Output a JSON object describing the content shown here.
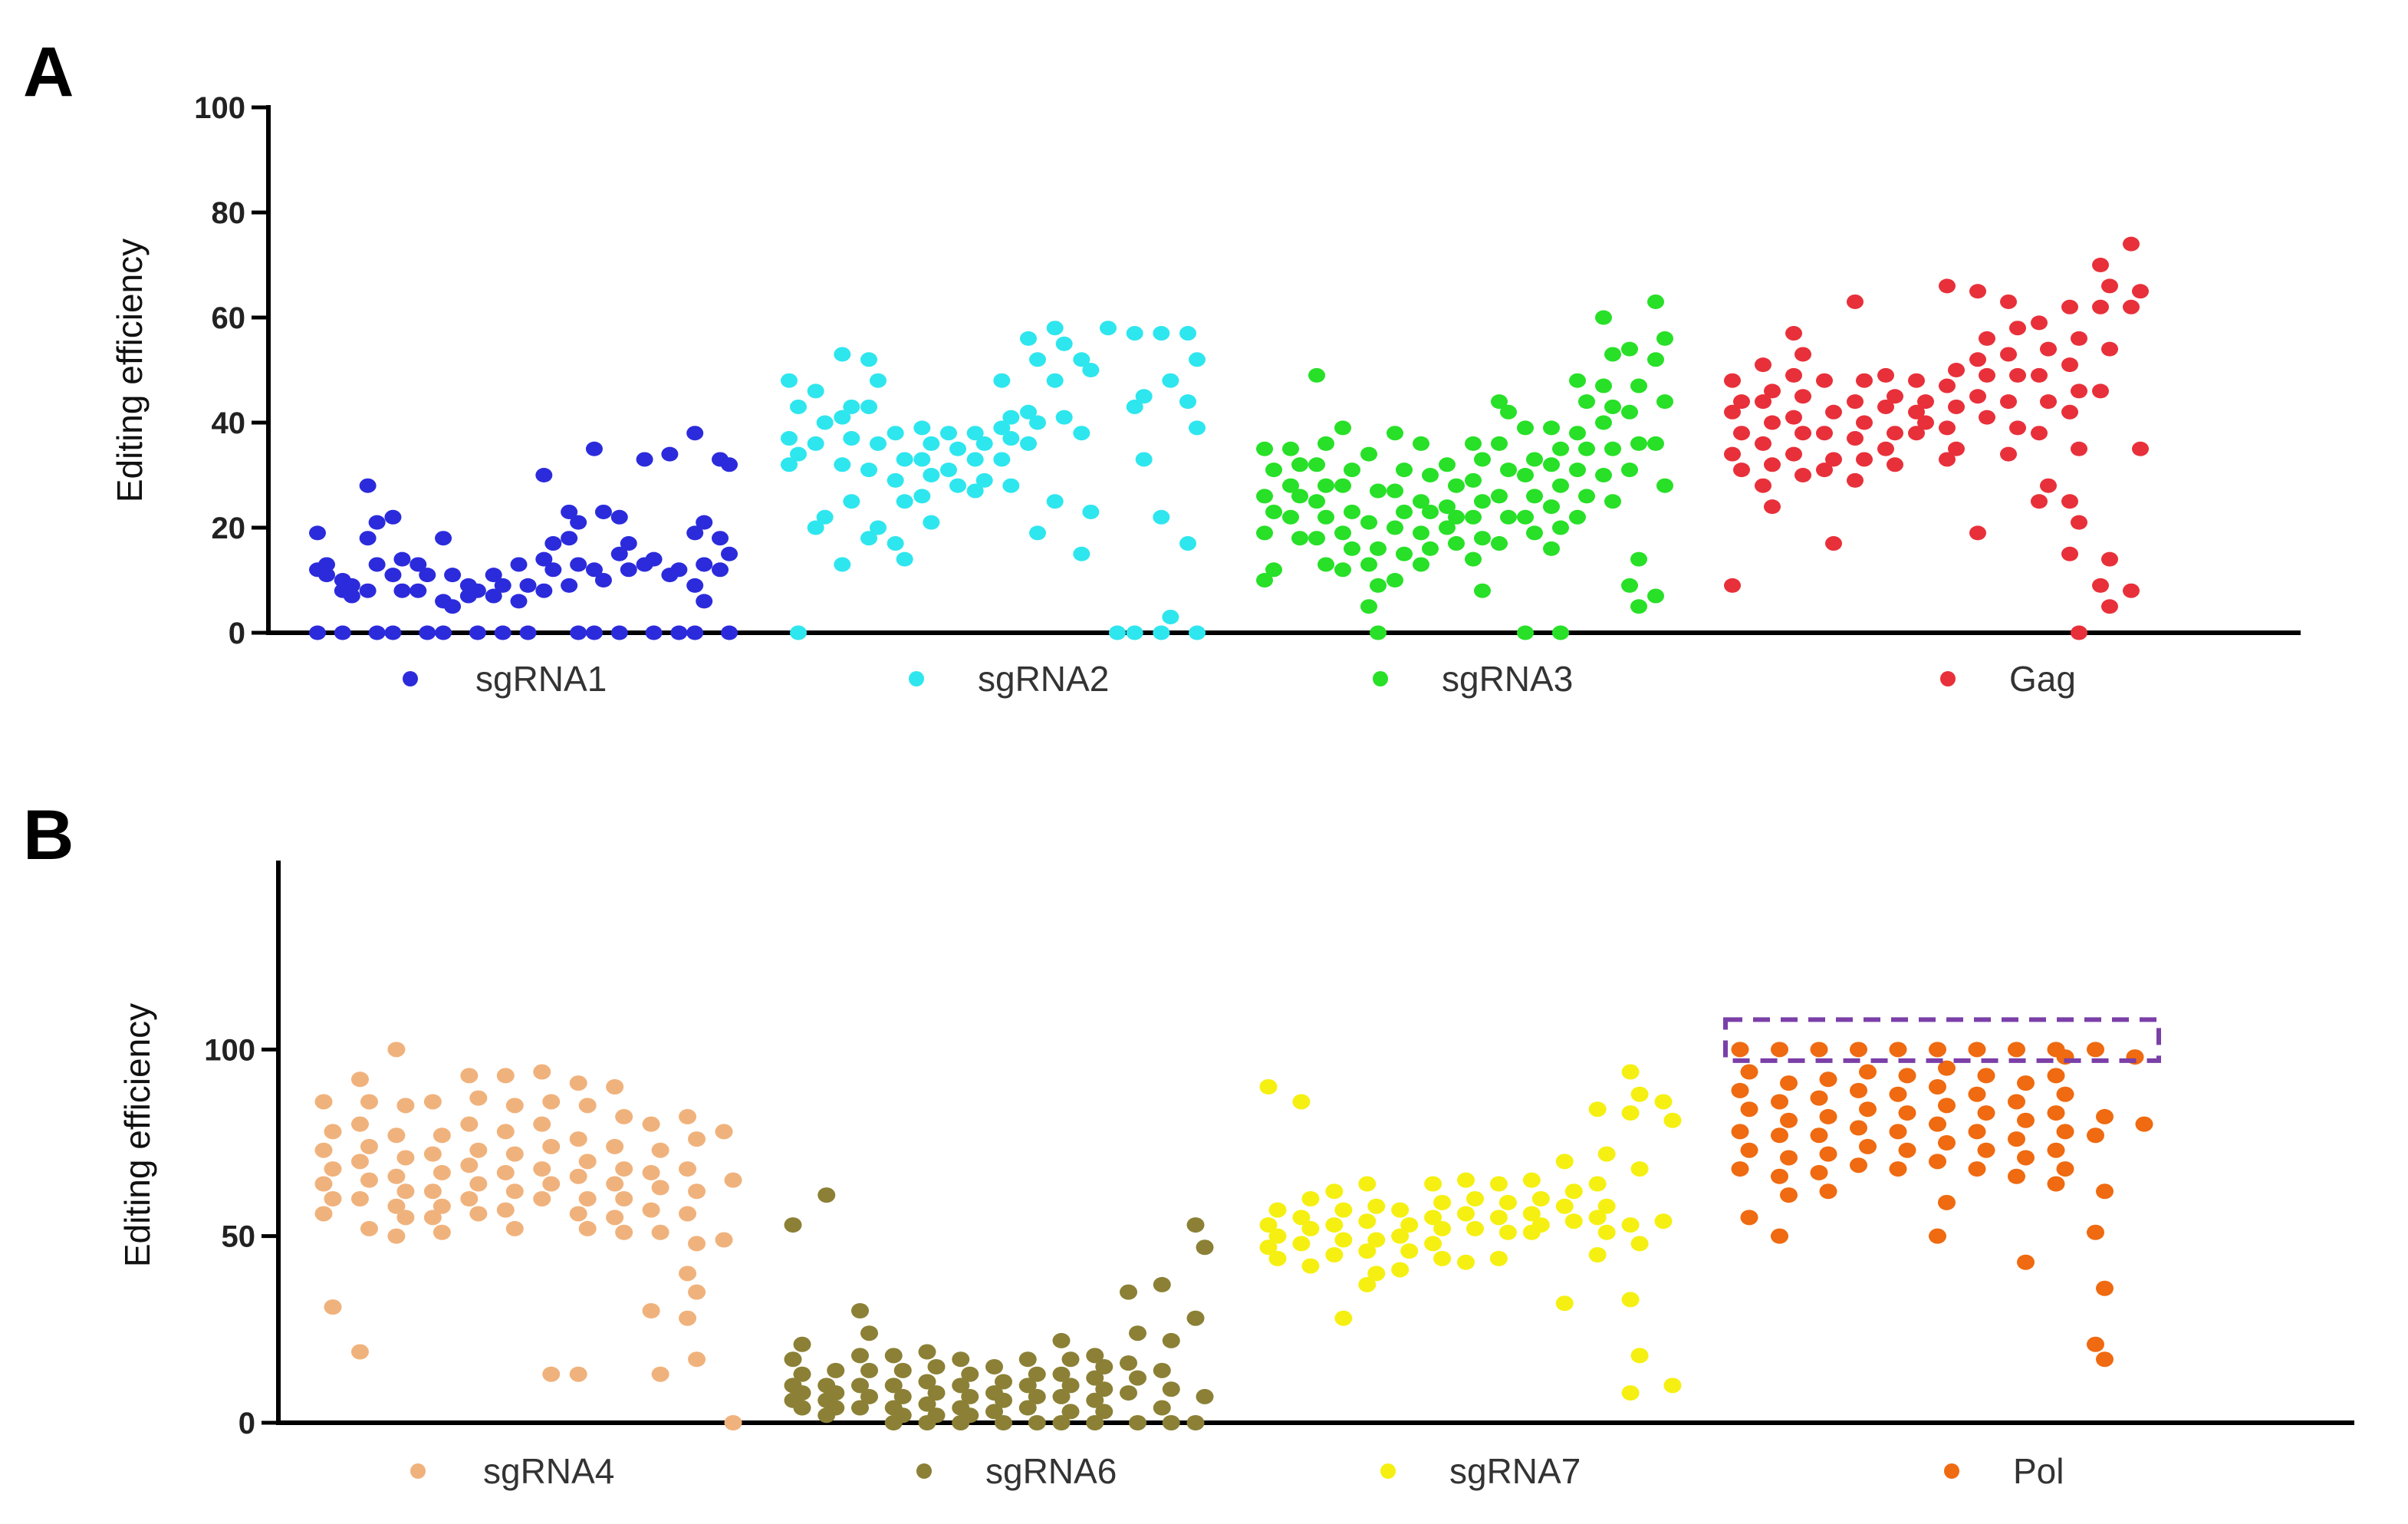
{
  "chart_data": [
    {
      "type": "scatter",
      "panel_label": "A",
      "ylabel": "Editing efficiency",
      "ylim": [
        0,
        100
      ],
      "yticks": [
        0,
        20,
        40,
        60,
        80,
        100
      ],
      "legend_position": "bottom",
      "series": [
        {
          "name": "sgRNA1",
          "color": "#2b2bdc",
          "samples": [
            [
              19,
              13,
              12,
              11,
              0
            ],
            [
              10,
              9,
              8,
              7,
              0
            ],
            [
              28,
              21,
              18,
              13,
              8,
              0
            ],
            [
              22,
              14,
              11,
              8,
              0
            ],
            [
              13,
              11,
              8,
              0
            ],
            [
              18,
              11,
              6,
              5,
              0
            ],
            [
              9,
              8,
              7,
              0
            ],
            [
              11,
              9,
              7,
              0
            ],
            [
              13,
              9,
              6,
              0
            ],
            [
              30,
              17,
              14,
              12,
              8
            ],
            [
              23,
              21,
              18,
              13,
              9,
              0
            ],
            [
              35,
              23,
              12,
              10,
              0
            ],
            [
              22,
              17,
              15,
              12,
              0
            ],
            [
              33,
              14,
              13,
              0
            ],
            [
              34,
              12,
              11,
              0
            ],
            [
              38,
              21,
              19,
              13,
              9,
              6,
              0
            ],
            [
              33,
              32,
              18,
              15,
              12,
              0
            ]
          ]
        },
        {
          "name": "sgRNA2",
          "color": "#2ee6ee",
          "samples": [
            [
              48,
              43,
              37,
              34,
              32,
              0
            ],
            [
              46,
              40,
              36,
              22,
              20
            ],
            [
              53,
              43,
              41,
              37,
              32,
              25,
              13
            ],
            [
              52,
              48,
              43,
              36,
              31,
              20,
              18
            ],
            [
              38,
              33,
              29,
              25,
              17,
              14
            ],
            [
              39,
              36,
              33,
              30,
              26,
              21
            ],
            [
              38,
              35,
              31,
              28
            ],
            [
              38,
              36,
              33,
              29,
              27
            ],
            [
              48,
              41,
              39,
              37,
              33,
              28
            ],
            [
              56,
              52,
              42,
              40,
              36,
              19
            ],
            [
              58,
              55,
              48,
              41,
              25
            ],
            [
              52,
              50,
              38,
              23,
              15
            ],
            [
              58,
              0
            ],
            [
              57,
              45,
              43,
              33,
              0
            ],
            [
              57,
              48,
              22,
              3,
              0
            ],
            [
              57,
              52,
              44,
              39,
              17,
              0
            ]
          ]
        },
        {
          "name": "sgRNA3",
          "color": "#27e027",
          "samples": [
            [
              35,
              31,
              26,
              23,
              19,
              12,
              10
            ],
            [
              35,
              32,
              28,
              26,
              22,
              18
            ],
            [
              49,
              36,
              32,
              28,
              25,
              22,
              18,
              13
            ],
            [
              39,
              31,
              28,
              23,
              19,
              16,
              12
            ],
            [
              34,
              27,
              21,
              16,
              13,
              9,
              5,
              0
            ],
            [
              38,
              31,
              27,
              23,
              20,
              15,
              10
            ],
            [
              36,
              30,
              25,
              23,
              19,
              16,
              13
            ],
            [
              32,
              28,
              24,
              22,
              20,
              17
            ],
            [
              36,
              33,
              29,
              25,
              22,
              18,
              14,
              8
            ],
            [
              44,
              42,
              36,
              31,
              26,
              22,
              17
            ],
            [
              39,
              33,
              30,
              26,
              22,
              19,
              0
            ],
            [
              39,
              35,
              32,
              28,
              24,
              20,
              16,
              0
            ],
            [
              48,
              44,
              38,
              35,
              31,
              26,
              22
            ],
            [
              60,
              53,
              47,
              43,
              40,
              35,
              30,
              25
            ],
            [
              54,
              47,
              42,
              36,
              31,
              14,
              9,
              5
            ],
            [
              63,
              56,
              52,
              44,
              36,
              28,
              7
            ]
          ]
        },
        {
          "name": "Gag",
          "color": "#e8303a",
          "samples": [
            [
              48,
              44,
              42,
              38,
              34,
              31,
              9
            ],
            [
              51,
              46,
              44,
              40,
              36,
              32,
              28,
              24
            ],
            [
              57,
              53,
              49,
              45,
              41,
              38,
              34,
              30
            ],
            [
              48,
              42,
              38,
              33,
              31,
              17
            ],
            [
              63,
              48,
              44,
              40,
              37,
              33,
              29
            ],
            [
              49,
              45,
              43,
              38,
              35,
              32
            ],
            [
              48,
              44,
              42,
              40,
              38
            ],
            [
              66,
              50,
              47,
              43,
              39,
              35,
              33
            ],
            [
              65,
              56,
              52,
              49,
              45,
              41,
              19
            ],
            [
              63,
              58,
              53,
              49,
              44,
              39,
              34
            ],
            [
              59,
              54,
              49,
              44,
              38,
              28,
              25
            ],
            [
              62,
              56,
              51,
              46,
              42,
              35,
              25,
              21,
              15,
              0
            ],
            [
              70,
              66,
              62,
              54,
              46,
              14,
              9,
              5
            ],
            [
              74,
              65,
              62,
              35,
              8
            ]
          ]
        }
      ]
    },
    {
      "type": "scatter",
      "panel_label": "B",
      "ylabel": "Editing efficiency",
      "ylim": [
        0,
        150
      ],
      "yticks": [
        0,
        50,
        100
      ],
      "legend_position": "bottom",
      "highlight_region": {
        "x_from_series": "Pol",
        "y_range": [
          97,
          108
        ],
        "style": "dashed",
        "color": "#7b3fa8"
      },
      "series": [
        {
          "name": "sgRNA4",
          "color": "#f0b27c",
          "samples": [
            [
              86,
              78,
              73,
              68,
              64,
              60,
              56,
              31
            ],
            [
              92,
              86,
              80,
              74,
              70,
              65,
              60,
              52,
              19
            ],
            [
              100,
              85,
              77,
              71,
              66,
              62,
              58,
              55,
              50
            ],
            [
              86,
              77,
              72,
              67,
              62,
              58,
              55,
              51
            ],
            [
              93,
              87,
              80,
              73,
              69,
              64,
              60,
              56
            ],
            [
              93,
              85,
              78,
              72,
              67,
              62,
              57,
              52
            ],
            [
              94,
              86,
              80,
              74,
              68,
              64,
              60,
              13
            ],
            [
              91,
              85,
              76,
              70,
              66,
              60,
              56,
              52,
              13
            ],
            [
              90,
              82,
              74,
              68,
              64,
              60,
              55,
              51
            ],
            [
              80,
              73,
              67,
              63,
              57,
              51,
              30,
              13
            ],
            [
              82,
              76,
              68,
              62,
              56,
              48,
              40,
              35,
              28,
              17
            ],
            [
              78,
              65,
              49,
              0
            ]
          ]
        },
        {
          "name": "sgRNA6",
          "color": "#8b8035",
          "samples": [
            [
              53,
              21,
              17,
              13,
              10,
              8,
              6,
              4
            ],
            [
              61,
              14,
              10,
              8,
              6,
              4,
              2
            ],
            [
              30,
              24,
              18,
              14,
              10,
              7,
              4
            ],
            [
              18,
              14,
              10,
              7,
              4,
              2,
              0
            ],
            [
              19,
              15,
              11,
              8,
              5,
              2,
              0
            ],
            [
              17,
              13,
              10,
              7,
              4,
              2,
              0
            ],
            [
              15,
              11,
              8,
              6,
              3,
              0
            ],
            [
              17,
              13,
              10,
              7,
              4,
              0
            ],
            [
              22,
              17,
              13,
              10,
              7,
              3,
              0
            ],
            [
              18,
              15,
              12,
              9,
              6,
              3,
              0
            ],
            [
              35,
              24,
              16,
              12,
              8,
              0
            ],
            [
              37,
              22,
              14,
              9,
              4,
              0
            ],
            [
              53,
              47,
              28,
              7,
              0
            ]
          ]
        },
        {
          "name": "sgRNA7",
          "color": "#f5f011",
          "samples": [
            [
              90,
              57,
              53,
              50,
              47,
              44
            ],
            [
              86,
              60,
              55,
              52,
              48,
              42
            ],
            [
              62,
              57,
              53,
              49,
              45,
              28
            ],
            [
              64,
              58,
              54,
              49,
              46,
              40,
              37
            ],
            [
              57,
              53,
              50,
              46,
              41
            ],
            [
              64,
              59,
              55,
              52,
              48,
              44
            ],
            [
              65,
              60,
              56,
              52,
              43
            ],
            [
              64,
              59,
              55,
              51,
              44
            ],
            [
              65,
              60,
              56,
              53,
              51
            ],
            [
              70,
              62,
              58,
              54,
              32
            ],
            [
              84,
              72,
              64,
              58,
              55,
              51,
              45
            ],
            [
              94,
              88,
              83,
              68,
              53,
              48,
              33,
              18,
              8
            ],
            [
              86,
              81,
              54,
              10
            ]
          ]
        },
        {
          "name": "Pol",
          "color": "#ef6a10",
          "samples": [
            [
              100,
              94,
              89,
              84,
              78,
              73,
              68,
              55
            ],
            [
              100,
              91,
              86,
              81,
              77,
              71,
              66,
              61,
              50
            ],
            [
              100,
              92,
              87,
              82,
              77,
              72,
              67,
              62
            ],
            [
              100,
              94,
              89,
              84,
              79,
              74,
              69
            ],
            [
              100,
              93,
              88,
              83,
              78,
              73,
              68
            ],
            [
              100,
              95,
              90,
              85,
              80,
              75,
              70,
              59,
              50
            ],
            [
              100,
              93,
              88,
              83,
              78,
              73,
              68
            ],
            [
              100,
              91,
              86,
              81,
              76,
              71,
              66,
              43
            ],
            [
              100,
              98,
              93,
              88,
              83,
              78,
              73,
              68,
              64
            ],
            [
              100,
              82,
              77,
              62,
              51,
              36,
              21,
              17
            ],
            [
              98,
              80
            ]
          ]
        }
      ]
    }
  ]
}
